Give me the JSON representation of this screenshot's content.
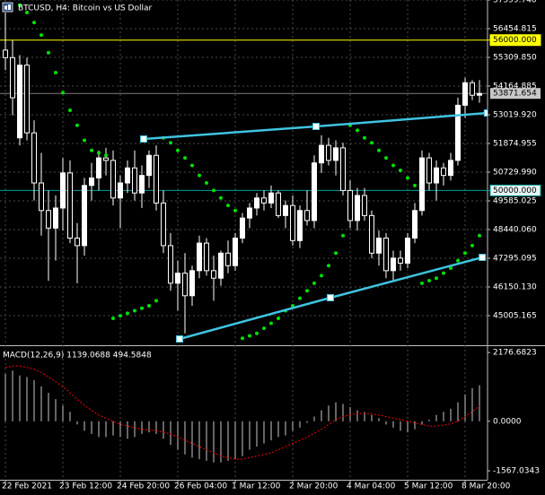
{
  "chart_data": [
    {
      "type": "candlestick",
      "title": "BTCUSD, H4:  Bitcoin vs US Dollar",
      "categories": [
        "22 Feb 2021",
        null,
        null,
        null,
        null,
        null,
        null,
        null,
        "23 Feb 12:00",
        null,
        null,
        null,
        null,
        null,
        null,
        null,
        "24 Feb 20:00",
        null,
        null,
        null,
        null,
        null,
        null,
        null,
        "26 Feb 04:00",
        null,
        null,
        null,
        null,
        null,
        null,
        null,
        "1 Mar 12:00",
        null,
        null,
        null,
        null,
        null,
        null,
        null,
        "2 Mar 20:00",
        null,
        null,
        null,
        null,
        null,
        null,
        null,
        "4 Mar 04:00",
        null,
        null,
        null,
        null,
        null,
        null,
        null,
        "5 Mar 12:00",
        null,
        null,
        null,
        null,
        null,
        null,
        null,
        "8 Mar 20:00",
        null,
        null
      ],
      "open": [
        55600,
        55300,
        52100,
        55000,
        52300,
        50300,
        49200,
        48500,
        49300,
        50700,
        48100,
        47800,
        50200,
        50500,
        51300,
        51200,
        49700,
        50300,
        50900,
        49900,
        50600,
        51400,
        49500,
        47800,
        46300,
        46700,
        45800,
        46800,
        47900,
        46800,
        46500,
        47500,
        47000,
        48100,
        48900,
        49300,
        49700,
        49500,
        49900,
        49000,
        49400,
        48000,
        49200,
        48800,
        51100,
        51800,
        51200,
        51700,
        50000,
        48800,
        49800,
        49000,
        47500,
        48100,
        46800,
        47300,
        47100,
        48100,
        49200,
        51300,
        50300,
        50900,
        50600,
        51200,
        53400,
        54300,
        53800
      ],
      "high": [
        57100,
        56000,
        55400,
        55300,
        52800,
        51500,
        50000,
        49800,
        51300,
        51200,
        48700,
        50500,
        51100,
        51600,
        51700,
        51600,
        50600,
        51200,
        51600,
        51000,
        51600,
        51800,
        50000,
        48300,
        47200,
        47500,
        47000,
        48200,
        48100,
        47400,
        47600,
        48000,
        48300,
        49100,
        49500,
        49900,
        50000,
        50200,
        50000,
        49600,
        49800,
        49400,
        50000,
        51400,
        52200,
        52100,
        52000,
        51900,
        50400,
        50100,
        50100,
        49200,
        48400,
        48300,
        47600,
        47600,
        48300,
        49500,
        51600,
        51500,
        51200,
        51100,
        51500,
        53700,
        54500,
        54400,
        54400
      ],
      "low": [
        54800,
        53000,
        51800,
        52000,
        49600,
        48200,
        46400,
        47200,
        48400,
        47900,
        46300,
        47400,
        49600,
        50000,
        50600,
        49400,
        48500,
        49900,
        49600,
        49300,
        50100,
        49200,
        47500,
        46000,
        45200,
        44300,
        45400,
        46500,
        46600,
        45600,
        46200,
        46700,
        46800,
        47900,
        48500,
        49000,
        49200,
        49300,
        48900,
        48500,
        47800,
        47700,
        48600,
        48500,
        50700,
        51000,
        50600,
        49800,
        48500,
        48400,
        48800,
        47300,
        47000,
        46500,
        46400,
        46800,
        46900,
        47900,
        49000,
        50000,
        49600,
        50200,
        50400,
        51000,
        52900,
        53600,
        53500
      ],
      "close": [
        55300,
        53700,
        55000,
        52300,
        50300,
        49200,
        48500,
        49300,
        50700,
        48100,
        47800,
        50200,
        50500,
        51300,
        51200,
        49700,
        50300,
        50900,
        49900,
        50600,
        51400,
        49500,
        47800,
        46300,
        46700,
        45800,
        46800,
        47900,
        46800,
        46500,
        47500,
        47000,
        48100,
        48900,
        49300,
        49700,
        49500,
        49900,
        49000,
        49400,
        48000,
        49200,
        48800,
        51100,
        51800,
        51200,
        51700,
        50000,
        48800,
        49800,
        49000,
        47500,
        48100,
        46800,
        47300,
        47100,
        48100,
        49200,
        51300,
        50300,
        50900,
        50600,
        51200,
        53400,
        54300,
        53800,
        53871.654
      ],
      "up_color": "#ffffff",
      "down_color": "#000000",
      "wick_color": "#ffffff",
      "sar": {
        "color": "#00e000",
        "values": [
          57900,
          57700,
          57400,
          57100,
          56700,
          56200,
          55500,
          54700,
          53900,
          53200,
          52600,
          52000,
          51600,
          51500,
          51400,
          44900,
          45000,
          45100,
          45200,
          45300,
          45400,
          45600,
          52100,
          51900,
          51600,
          51300,
          51000,
          50600,
          50300,
          50000,
          49700,
          49400,
          49200,
          44100,
          44200,
          44300,
          44500,
          44700,
          44900,
          45200,
          45400,
          45700,
          46000,
          46300,
          46600,
          47000,
          47500,
          48200,
          52600,
          52400,
          52100,
          51900,
          51600,
          51300,
          51000,
          50800,
          50500,
          50200,
          46300,
          46400,
          46500,
          46700,
          46900,
          47200,
          47500,
          47800,
          48200
        ]
      },
      "levels": [
        {
          "value": 56000,
          "label": "56000.000",
          "color": "#ffff00"
        },
        {
          "value": 50000,
          "label": "50000.000",
          "color": "#00a0a0"
        }
      ],
      "last_price": 53871.654,
      "trendlines": [
        {
          "color": "#3fc4e0",
          "points": [
            {
              "x": 19.25,
              "y": 52054
            },
            {
              "x": 43.25,
              "y": 52555
            },
            {
              "x": 67.1,
              "y": 53092
            }
          ]
        },
        {
          "color": "#3fc4e0",
          "points": [
            {
              "x": 24.25,
              "y": 44075
            },
            {
              "x": 45.25,
              "y": 45721
            },
            {
              "x": 66.4,
              "y": 47331
            }
          ]
        }
      ],
      "ylim": [
        43896,
        57600
      ],
      "yticks": [
        {
          "value": 57599.74,
          "label": "57599.740"
        },
        56454.815,
        {
          "value": 55309.85,
          "label": "55309.850"
        },
        54164.885,
        {
          "value": 53019.92,
          "label": "53019.920"
        },
        51874.955,
        {
          "value": 50729.99,
          "label": "50729.990"
        },
        49585.025,
        {
          "value": 48440.06,
          "label": "48440.060"
        },
        47295.095,
        {
          "value": 46150.13,
          "label": "46150.130"
        },
        45005.165
      ],
      "grid": true
    },
    {
      "type": "bar",
      "title": "MACD(12,26,9) 1139.0688 494.5848",
      "values": [
        1500,
        1600,
        1450,
        1400,
        1300,
        1100,
        900,
        700,
        500,
        300,
        -100,
        -300,
        -400,
        -500,
        -500,
        -450,
        -500,
        -550,
        -500,
        -400,
        -350,
        -400,
        -550,
        -750,
        -900,
        -1050,
        -1150,
        -1200,
        -1250,
        -1300,
        -1300,
        -1250,
        -1200,
        -1100,
        -900,
        -800,
        -700,
        -600,
        -500,
        -450,
        -300,
        -200,
        -50,
        150,
        350,
        500,
        600,
        550,
        450,
        350,
        300,
        200,
        100,
        -100,
        -200,
        -300,
        -350,
        -250,
        -100,
        50,
        200,
        300,
        400,
        600,
        850,
        1050,
        1139.0688
      ],
      "color": "#c8c8c8",
      "signal": {
        "color": "#ff0000",
        "values": [
          1700,
          1750,
          1750,
          1700,
          1650,
          1550,
          1400,
          1250,
          1100,
          900,
          700,
          500,
          350,
          200,
          100,
          0,
          -100,
          -150,
          -200,
          -250,
          -280,
          -300,
          -350,
          -400,
          -500,
          -600,
          -700,
          -800,
          -900,
          -1000,
          -1100,
          -1150,
          -1200,
          -1200,
          -1150,
          -1100,
          -1050,
          -1000,
          -900,
          -800,
          -700,
          -600,
          -500,
          -380,
          -250,
          -100,
          50,
          150,
          200,
          250,
          250,
          230,
          200,
          150,
          100,
          50,
          0,
          -50,
          -100,
          -150,
          -150,
          -120,
          -80,
          0,
          150,
          300,
          494.5848
        ]
      },
      "ylim": [
        -1850,
        2350
      ],
      "yticks": [
        2176.6823,
        {
          "value": 0,
          "label": "0.0000"
        },
        -1567.0343
      ]
    }
  ]
}
